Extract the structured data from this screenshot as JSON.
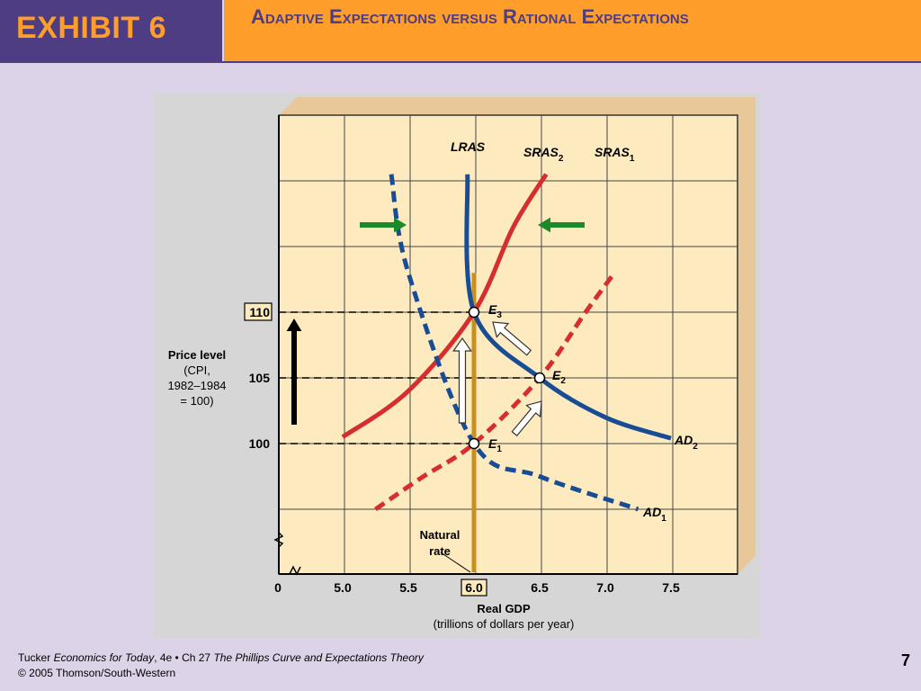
{
  "header": {
    "exhibit": "EXHIBIT 6",
    "title": "Adaptive Expectations versus Rational Expectations"
  },
  "footer": {
    "line1_author": "Tucker",
    "line1_book": "Economics for Today",
    "line1_edition": ", 4e • Ch 27 ",
    "line1_chapter": "The Phillips Curve and Expectations Theory",
    "line2": "© 2005 Thomson/South-Western",
    "page": "7"
  },
  "chart_data": {
    "type": "line",
    "xlabel": "Real GDP",
    "xlabel_sub": "(trillions of dollars per year)",
    "ylabel": "Price level",
    "ylabel_sub": "(CPI,\n1982–1984\n= 100)",
    "x_ticks": [
      "0",
      "5.0",
      "5.5",
      "6.0",
      "6.5",
      "7.0",
      "7.5"
    ],
    "y_ticks": [
      "100",
      "105",
      "110"
    ],
    "highlighted_x_tick": "6.0",
    "highlighted_y_tick": "110",
    "series": [
      {
        "name": "LRAS",
        "color": "#c8901e",
        "style": "solid",
        "x": [
          6.0,
          6.0
        ],
        "y": [
          113.0,
          90.2
        ]
      },
      {
        "name": "SRAS1",
        "color": "#d62e2e",
        "style": "dashed",
        "x": [
          5.25,
          5.6,
          6.0,
          6.5,
          6.85,
          7.07
        ],
        "y": [
          95.0,
          97.4,
          100.0,
          105.0,
          110.0,
          113.0
        ]
      },
      {
        "name": "SRAS2",
        "color": "#d62e2e",
        "style": "solid",
        "x": [
          5.0,
          5.5,
          6.0,
          6.3,
          6.55
        ],
        "y": [
          100.5,
          104.0,
          110.0,
          116.5,
          120.5
        ]
      },
      {
        "name": "AD1",
        "color": "#184d96",
        "style": "dashed",
        "x": [
          5.37,
          5.5,
          6.0,
          6.5,
          7.25
        ],
        "y": [
          120.5,
          113.0,
          100.0,
          97.5,
          95.0
        ]
      },
      {
        "name": "AD2",
        "color": "#184d96",
        "style": "solid",
        "x": [
          5.95,
          6.0,
          6.5,
          7.0,
          7.5
        ],
        "y": [
          120.5,
          110.0,
          105.0,
          102.0,
          100.4
        ]
      }
    ],
    "points": [
      {
        "label": "E1",
        "x": 6.0,
        "y": 100
      },
      {
        "label": "E2",
        "x": 6.5,
        "y": 105
      },
      {
        "label": "E3",
        "x": 6.0,
        "y": 110
      }
    ],
    "annotations": [
      "Natural rate"
    ]
  }
}
